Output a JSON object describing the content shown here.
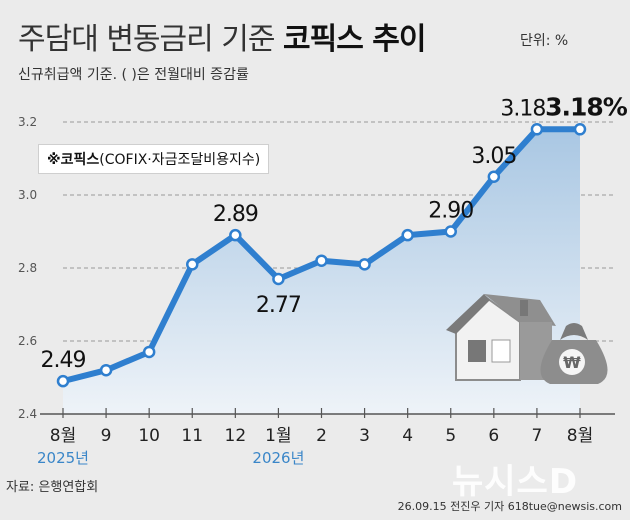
{
  "header": {
    "title": "주담대 변동금리 기준",
    "title_strong": "코픽스 추이",
    "unit": "단위: %",
    "subtitle": "신규취급액 기준. ( )은 전월대비 증감률"
  },
  "legend": {
    "mark": "※코픽스",
    "text": "(COFIX·자금조달비용지수)"
  },
  "footer": {
    "source": "자료: 은행연합회",
    "credit": "26.09.15 전진우 기자 618tue@newsis.com",
    "watermark": "뉴시스D"
  },
  "chart_data": {
    "type": "area",
    "categories": [
      "8월",
      "9",
      "10",
      "11",
      "12",
      "1월",
      "2",
      "3",
      "4",
      "5",
      "6",
      "7",
      "8월"
    ],
    "year_labels": [
      {
        "index": 0,
        "text": "2025년"
      },
      {
        "index": 5,
        "text": "2026년"
      }
    ],
    "values": [
      2.49,
      2.52,
      2.57,
      2.81,
      2.89,
      2.77,
      2.82,
      2.81,
      2.89,
      2.9,
      3.05,
      3.18,
      3.18
    ],
    "data_labels": [
      {
        "index": 0,
        "text": "2.49",
        "pos": "above"
      },
      {
        "index": 4,
        "text": "2.89",
        "pos": "above"
      },
      {
        "index": 5,
        "text": "2.77",
        "pos": "below"
      },
      {
        "index": 9,
        "text": "2.90",
        "pos": "above"
      },
      {
        "index": 10,
        "text": "3.05",
        "pos": "above"
      },
      {
        "index": 11,
        "text": "3.18",
        "pos": "above"
      },
      {
        "index": 12,
        "text": "3.18%",
        "pos": "above",
        "bold": true
      }
    ],
    "yticks": [
      2.4,
      2.6,
      2.8,
      3.0,
      3.2
    ],
    "ytick_labels": [
      "2.4",
      "2.6",
      "2.8",
      "3.0",
      "3.2"
    ],
    "ylim": [
      2.4,
      3.2
    ],
    "grid": true,
    "colors": {
      "line": "#2f7fcf",
      "area_top": "#a9c7e3",
      "area_bottom": "#eef3f8",
      "marker_fill": "#ffffff"
    }
  }
}
